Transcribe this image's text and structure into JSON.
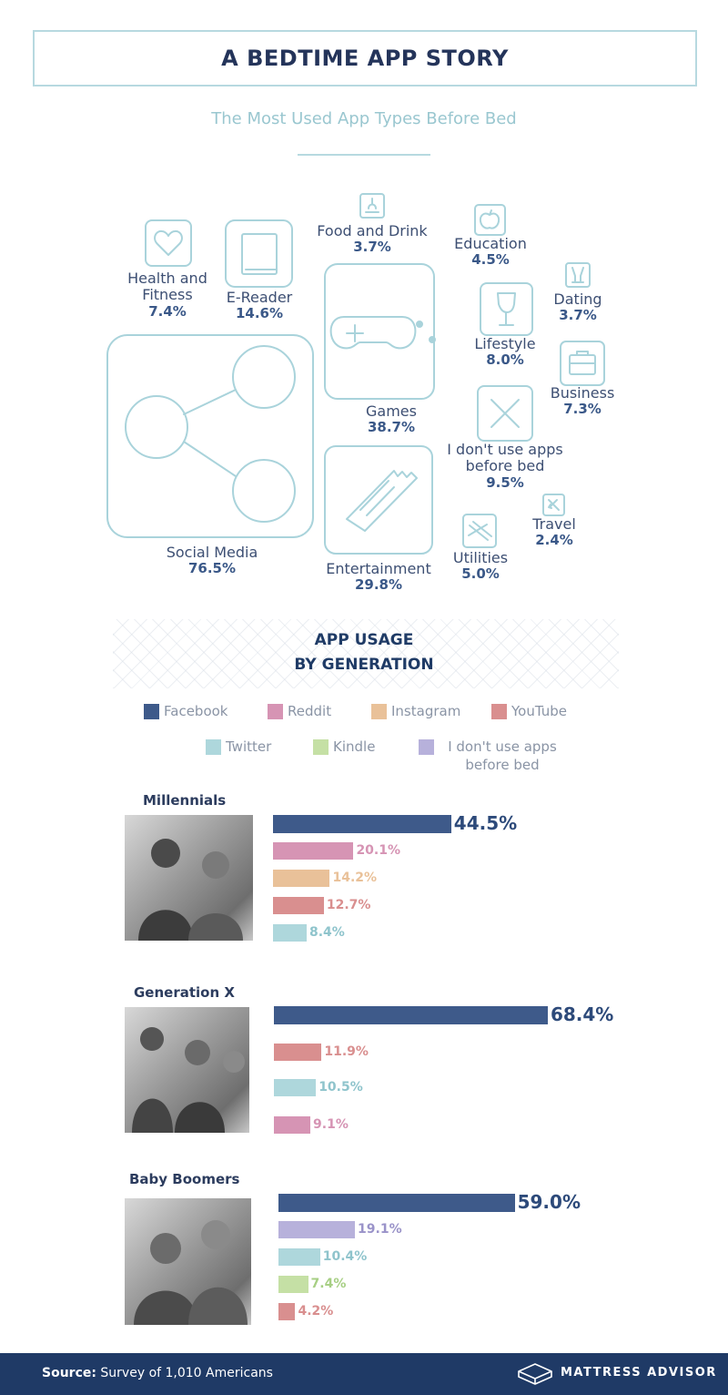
{
  "header": {
    "title": "A BEDTIME APP STORY",
    "subtitle": "The Most Used App Types Before Bed"
  },
  "app_types": [
    {
      "key": "health",
      "name_lines": [
        "Health and",
        "Fitness"
      ],
      "pct": "7.4%",
      "icon": "heart-icon"
    },
    {
      "key": "ereader",
      "name_lines": [
        "E-Reader"
      ],
      "pct": "14.6%",
      "icon": "book-icon"
    },
    {
      "key": "food",
      "name_lines": [
        "Food and Drink"
      ],
      "pct": "3.7%",
      "icon": "food-icon"
    },
    {
      "key": "education",
      "name_lines": [
        "Education"
      ],
      "pct": "4.5%",
      "icon": "apple-icon"
    },
    {
      "key": "dating",
      "name_lines": [
        "Dating"
      ],
      "pct": "3.7%",
      "icon": "champagne-icon"
    },
    {
      "key": "lifestyle",
      "name_lines": [
        "Lifestyle"
      ],
      "pct": "8.0%",
      "icon": "wine-glass-icon"
    },
    {
      "key": "games",
      "name_lines": [
        "Games"
      ],
      "pct": "38.7%",
      "icon": "gamepad-icon"
    },
    {
      "key": "business",
      "name_lines": [
        "Business"
      ],
      "pct": "7.3%",
      "icon": "briefcase-icon"
    },
    {
      "key": "none",
      "name_lines": [
        "I don't use apps",
        "before bed"
      ],
      "pct": "9.5%",
      "icon": "x-icon"
    },
    {
      "key": "social",
      "name_lines": [
        "Social Media"
      ],
      "pct": "76.5%",
      "icon": "share-icon"
    },
    {
      "key": "entertainment",
      "name_lines": [
        "Entertainment"
      ],
      "pct": "29.8%",
      "icon": "ticket-icon"
    },
    {
      "key": "utilities",
      "name_lines": [
        "Utilities"
      ],
      "pct": "5.0%",
      "icon": "hanger-icon"
    },
    {
      "key": "travel",
      "name_lines": [
        "Travel"
      ],
      "pct": "2.4%",
      "icon": "plane-icon"
    }
  ],
  "usage": {
    "title_line1": "APP USAGE",
    "title_line2": "BY GENERATION"
  },
  "colors": {
    "Facebook": "#3e5a8a",
    "Reddit": "#d694b4",
    "Instagram": "#e9c199",
    "YouTube": "#d98f8f",
    "Twitter": "#aed7dc",
    "Kindle": "#c5e0a5",
    "I don't use apps before bed": "#b7b1db"
  },
  "legend": [
    {
      "label": "Facebook",
      "color": "#3e5a8a"
    },
    {
      "label": "Reddit",
      "color": "#d694b4"
    },
    {
      "label": "Instagram",
      "color": "#e9c199"
    },
    {
      "label": "YouTube",
      "color": "#d98f8f"
    },
    {
      "label": "Twitter",
      "color": "#aed7dc"
    },
    {
      "label": "Kindle",
      "color": "#c5e0a5"
    },
    {
      "label": "I don't use apps before bed",
      "color": "#b7b1db"
    }
  ],
  "chart_data": [
    {
      "type": "bar",
      "title": "Millennials",
      "categories": [
        "Facebook",
        "Reddit",
        "Instagram",
        "YouTube",
        "Twitter"
      ],
      "values": [
        44.5,
        20.1,
        14.2,
        12.7,
        8.4
      ],
      "labels": [
        "44.5%",
        "20.1%",
        "14.2%",
        "12.7%",
        "8.4%"
      ]
    },
    {
      "type": "bar",
      "title": "Generation X",
      "categories": [
        "Facebook",
        "YouTube",
        "Twitter",
        "Reddit"
      ],
      "values": [
        68.4,
        11.9,
        10.5,
        9.1
      ],
      "labels": [
        "68.4%",
        "11.9%",
        "10.5%",
        "9.1%"
      ]
    },
    {
      "type": "bar",
      "title": "Baby Boomers",
      "categories": [
        "Facebook",
        "I don't use apps before bed",
        "Twitter",
        "Kindle",
        "YouTube"
      ],
      "values": [
        59.0,
        19.1,
        10.4,
        7.4,
        4.2
      ],
      "labels": [
        "59.0%",
        "19.1%",
        "10.4%",
        "7.4%",
        "4.2%"
      ]
    }
  ],
  "footer": {
    "source_label": "Source:",
    "source_text": " Survey of 1,010 Americans",
    "brand": "MATTRESS ADVISOR"
  }
}
